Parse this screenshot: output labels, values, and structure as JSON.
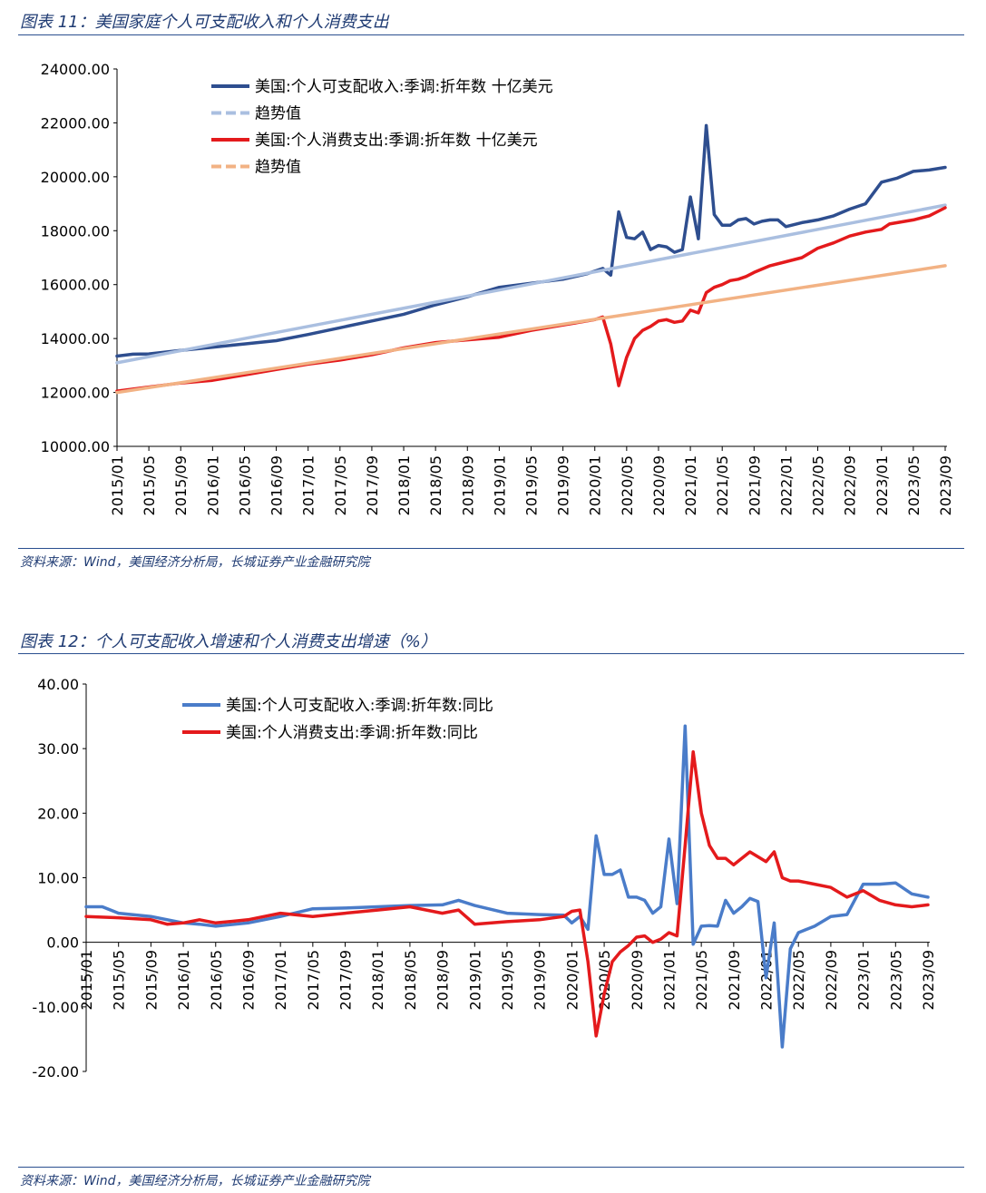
{
  "figure1": {
    "title": "图表 11：美国家庭个人可支配收入和个人消费支出",
    "source": "资料来源：Wind，美国经济分析局，长城证券产业金融研究院"
  },
  "figure2": {
    "title": "图表 12：个人可支配收入增速和个人消费支出增速（%）",
    "source": "资料来源：Wind，美国经济分析局，长城证券产业金融研究院"
  },
  "chart_data": [
    {
      "type": "line",
      "title": "",
      "x_tick_labels": [
        "2015/01",
        "2015/05",
        "2015/09",
        "2016/01",
        "2016/05",
        "2016/09",
        "2017/01",
        "2017/05",
        "2017/09",
        "2018/01",
        "2018/05",
        "2018/09",
        "2019/01",
        "2019/05",
        "2019/09",
        "2020/01",
        "2020/05",
        "2020/09",
        "2021/01",
        "2021/05",
        "2021/09",
        "2022/01",
        "2022/05",
        "2022/09",
        "2023/01",
        "2023/05",
        "2023/09"
      ],
      "x_range": [
        "2015/01",
        "2023/09"
      ],
      "y_ticks": [
        "10000.00",
        "12000.00",
        "14000.00",
        "16000.00",
        "18000.00",
        "20000.00",
        "22000.00",
        "24000.00"
      ],
      "ylim": [
        10000,
        24000
      ],
      "grid": false,
      "legend_position": "top-left",
      "series": [
        {
          "name": "美国:个人可支配收入:季调:折年数 十亿美元",
          "color": "#2e4e8f",
          "style": "solid",
          "points": [
            [
              "2015/01",
              13350
            ],
            [
              "2015/03",
              13420
            ],
            [
              "2015/05",
              13430
            ],
            [
              "2015/09",
              13560
            ],
            [
              "2016/01",
              13680
            ],
            [
              "2016/05",
              13800
            ],
            [
              "2016/09",
              13920
            ],
            [
              "2017/01",
              14150
            ],
            [
              "2017/05",
              14400
            ],
            [
              "2017/09",
              14650
            ],
            [
              "2018/01",
              14900
            ],
            [
              "2018/05",
              15250
            ],
            [
              "2018/09",
              15550
            ],
            [
              "2019/01",
              15900
            ],
            [
              "2019/05",
              16050
            ],
            [
              "2019/09",
              16200
            ],
            [
              "2019/12",
              16400
            ],
            [
              "2020/01",
              16500
            ],
            [
              "2020/02",
              16600
            ],
            [
              "2020/03",
              16350
            ],
            [
              "2020/04",
              18700
            ],
            [
              "2020/05",
              17750
            ],
            [
              "2020/06",
              17700
            ],
            [
              "2020/07",
              17950
            ],
            [
              "2020/08",
              17300
            ],
            [
              "2020/09",
              17450
            ],
            [
              "2020/10",
              17400
            ],
            [
              "2020/11",
              17200
            ],
            [
              "2020/12",
              17300
            ],
            [
              "2021/01",
              19250
            ],
            [
              "2021/02",
              17700
            ],
            [
              "2021/03",
              21900
            ],
            [
              "2021/04",
              18600
            ],
            [
              "2021/05",
              18200
            ],
            [
              "2021/06",
              18200
            ],
            [
              "2021/07",
              18400
            ],
            [
              "2021/08",
              18450
            ],
            [
              "2021/09",
              18250
            ],
            [
              "2021/10",
              18350
            ],
            [
              "2021/11",
              18400
            ],
            [
              "2021/12",
              18400
            ],
            [
              "2022/01",
              18150
            ],
            [
              "2022/03",
              18300
            ],
            [
              "2022/05",
              18400
            ],
            [
              "2022/07",
              18550
            ],
            [
              "2022/09",
              18800
            ],
            [
              "2022/11",
              19000
            ],
            [
              "2023/01",
              19800
            ],
            [
              "2023/03",
              19950
            ],
            [
              "2023/05",
              20200
            ],
            [
              "2023/07",
              20250
            ],
            [
              "2023/09",
              20350
            ]
          ]
        },
        {
          "name": "趋势值",
          "color": "#aabfe0",
          "style": "dashed",
          "points": [
            [
              "2015/01",
              13100
            ],
            [
              "2023/09",
              18950
            ]
          ]
        },
        {
          "name": "美国:个人消费支出:季调:折年数 十亿美元",
          "color": "#e41a1c",
          "style": "solid",
          "points": [
            [
              "2015/01",
              12050
            ],
            [
              "2015/05",
              12200
            ],
            [
              "2015/09",
              12350
            ],
            [
              "2016/01",
              12450
            ],
            [
              "2016/05",
              12650
            ],
            [
              "2016/09",
              12850
            ],
            [
              "2017/01",
              13050
            ],
            [
              "2017/05",
              13200
            ],
            [
              "2017/09",
              13400
            ],
            [
              "2018/01",
              13650
            ],
            [
              "2018/05",
              13850
            ],
            [
              "2018/09",
              13950
            ],
            [
              "2019/01",
              14050
            ],
            [
              "2019/05",
              14300
            ],
            [
              "2019/09",
              14500
            ],
            [
              "2020/01",
              14700
            ],
            [
              "2020/02",
              14800
            ],
            [
              "2020/03",
              13800
            ],
            [
              "2020/04",
              12250
            ],
            [
              "2020/05",
              13300
            ],
            [
              "2020/06",
              14000
            ],
            [
              "2020/07",
              14300
            ],
            [
              "2020/08",
              14450
            ],
            [
              "2020/09",
              14650
            ],
            [
              "2020/10",
              14700
            ],
            [
              "2020/11",
              14600
            ],
            [
              "2020/12",
              14650
            ],
            [
              "2021/01",
              15050
            ],
            [
              "2021/02",
              14950
            ],
            [
              "2021/03",
              15700
            ],
            [
              "2021/04",
              15900
            ],
            [
              "2021/05",
              16000
            ],
            [
              "2021/06",
              16150
            ],
            [
              "2021/07",
              16200
            ],
            [
              "2021/08",
              16300
            ],
            [
              "2021/09",
              16450
            ],
            [
              "2021/11",
              16700
            ],
            [
              "2022/01",
              16850
            ],
            [
              "2022/03",
              17000
            ],
            [
              "2022/05",
              17350
            ],
            [
              "2022/07",
              17550
            ],
            [
              "2022/09",
              17800
            ],
            [
              "2022/11",
              17950
            ],
            [
              "2023/01",
              18050
            ],
            [
              "2023/02",
              18250
            ],
            [
              "2023/05",
              18400
            ],
            [
              "2023/07",
              18550
            ],
            [
              "2023/09",
              18850
            ]
          ]
        },
        {
          "name": "趋势值",
          "color": "#f2b284",
          "style": "dashed",
          "points": [
            [
              "2015/01",
              12000
            ],
            [
              "2023/09",
              16700
            ]
          ]
        }
      ]
    },
    {
      "type": "line",
      "title": "",
      "x_tick_labels": [
        "2015/01",
        "2015/05",
        "2015/09",
        "2016/01",
        "2016/05",
        "2016/09",
        "2017/01",
        "2017/05",
        "2017/09",
        "2018/01",
        "2018/05",
        "2018/09",
        "2019/01",
        "2019/05",
        "2019/09",
        "2020/01",
        "2020/05",
        "2020/09",
        "2021/01",
        "2021/05",
        "2021/09",
        "2022/01",
        "2022/05",
        "2022/09",
        "2023/01",
        "2023/05",
        "2023/09"
      ],
      "x_range": [
        "2015/01",
        "2023/09"
      ],
      "y_ticks": [
        "-20.00",
        "-10.00",
        "0.00",
        "10.00",
        "20.00",
        "30.00",
        "40.00"
      ],
      "ylim": [
        -20,
        40
      ],
      "grid": false,
      "legend_position": "top-left",
      "series": [
        {
          "name": "美国:个人可支配收入:季调:折年数:同比",
          "color": "#4a7cc9",
          "style": "solid",
          "points": [
            [
              "2015/01",
              5.5
            ],
            [
              "2015/03",
              5.5
            ],
            [
              "2015/05",
              4.5
            ],
            [
              "2015/09",
              4.0
            ],
            [
              "2016/01",
              3.0
            ],
            [
              "2016/03",
              2.8
            ],
            [
              "2016/05",
              2.5
            ],
            [
              "2016/09",
              3.0
            ],
            [
              "2017/01",
              4.0
            ],
            [
              "2017/05",
              5.2
            ],
            [
              "2017/09",
              5.3
            ],
            [
              "2018/01",
              5.5
            ],
            [
              "2018/05",
              5.7
            ],
            [
              "2018/09",
              5.8
            ],
            [
              "2018/11",
              6.5
            ],
            [
              "2019/01",
              5.7
            ],
            [
              "2019/05",
              4.5
            ],
            [
              "2019/09",
              4.3
            ],
            [
              "2019/12",
              4.2
            ],
            [
              "2020/01",
              3.0
            ],
            [
              "2020/02",
              4.0
            ],
            [
              "2020/03",
              2.0
            ],
            [
              "2020/04",
              16.5
            ],
            [
              "2020/05",
              10.5
            ],
            [
              "2020/06",
              10.5
            ],
            [
              "2020/07",
              11.2
            ],
            [
              "2020/08",
              7.0
            ],
            [
              "2020/09",
              7.0
            ],
            [
              "2020/10",
              6.5
            ],
            [
              "2020/11",
              4.5
            ],
            [
              "2020/12",
              5.5
            ],
            [
              "2021/01",
              16.0
            ],
            [
              "2021/02",
              6.0
            ],
            [
              "2021/03",
              33.5
            ],
            [
              "2021/04",
              -0.3
            ],
            [
              "2021/05",
              2.5
            ],
            [
              "2021/06",
              2.6
            ],
            [
              "2021/07",
              2.5
            ],
            [
              "2021/08",
              6.5
            ],
            [
              "2021/09",
              4.5
            ],
            [
              "2021/10",
              5.5
            ],
            [
              "2021/11",
              6.8
            ],
            [
              "2021/12",
              6.3
            ],
            [
              "2022/01",
              -5.5
            ],
            [
              "2022/02",
              3.0
            ],
            [
              "2022/03",
              -16.2
            ],
            [
              "2022/04",
              -1.0
            ],
            [
              "2022/05",
              1.5
            ],
            [
              "2022/06",
              2.0
            ],
            [
              "2022/07",
              2.5
            ],
            [
              "2022/09",
              4.0
            ],
            [
              "2022/11",
              4.3
            ],
            [
              "2023/01",
              9.0
            ],
            [
              "2023/03",
              9.0
            ],
            [
              "2023/05",
              9.2
            ],
            [
              "2023/07",
              7.5
            ],
            [
              "2023/09",
              7.0
            ]
          ]
        },
        {
          "name": "美国:个人消费支出:季调:折年数:同比",
          "color": "#e41a1c",
          "style": "solid",
          "points": [
            [
              "2015/01",
              4.0
            ],
            [
              "2015/05",
              3.8
            ],
            [
              "2015/09",
              3.5
            ],
            [
              "2015/11",
              2.8
            ],
            [
              "2016/01",
              3.0
            ],
            [
              "2016/03",
              3.5
            ],
            [
              "2016/05",
              3.0
            ],
            [
              "2016/09",
              3.5
            ],
            [
              "2017/01",
              4.5
            ],
            [
              "2017/05",
              4.0
            ],
            [
              "2017/09",
              4.5
            ],
            [
              "2018/01",
              5.0
            ],
            [
              "2018/05",
              5.5
            ],
            [
              "2018/09",
              4.5
            ],
            [
              "2018/11",
              5.0
            ],
            [
              "2019/01",
              2.8
            ],
            [
              "2019/05",
              3.2
            ],
            [
              "2019/09",
              3.5
            ],
            [
              "2019/12",
              4.0
            ],
            [
              "2020/01",
              4.8
            ],
            [
              "2020/02",
              5.0
            ],
            [
              "2020/03",
              -3.0
            ],
            [
              "2020/04",
              -14.5
            ],
            [
              "2020/05",
              -8.0
            ],
            [
              "2020/06",
              -3.0
            ],
            [
              "2020/07",
              -1.5
            ],
            [
              "2020/08",
              -0.5
            ],
            [
              "2020/09",
              0.8
            ],
            [
              "2020/10",
              1.0
            ],
            [
              "2020/11",
              0.0
            ],
            [
              "2020/12",
              0.5
            ],
            [
              "2021/01",
              1.5
            ],
            [
              "2021/02",
              1.0
            ],
            [
              "2021/03",
              15.0
            ],
            [
              "2021/04",
              29.5
            ],
            [
              "2021/05",
              20.0
            ],
            [
              "2021/06",
              15.0
            ],
            [
              "2021/07",
              13.0
            ],
            [
              "2021/08",
              13.0
            ],
            [
              "2021/09",
              12.0
            ],
            [
              "2021/11",
              14.0
            ],
            [
              "2022/01",
              12.5
            ],
            [
              "2022/02",
              14.0
            ],
            [
              "2022/03",
              10.0
            ],
            [
              "2022/04",
              9.5
            ],
            [
              "2022/05",
              9.5
            ],
            [
              "2022/07",
              9.0
            ],
            [
              "2022/09",
              8.5
            ],
            [
              "2022/11",
              7.0
            ],
            [
              "2023/01",
              8.0
            ],
            [
              "2023/03",
              6.5
            ],
            [
              "2023/05",
              5.8
            ],
            [
              "2023/07",
              5.5
            ],
            [
              "2023/09",
              5.8
            ]
          ]
        }
      ]
    }
  ]
}
